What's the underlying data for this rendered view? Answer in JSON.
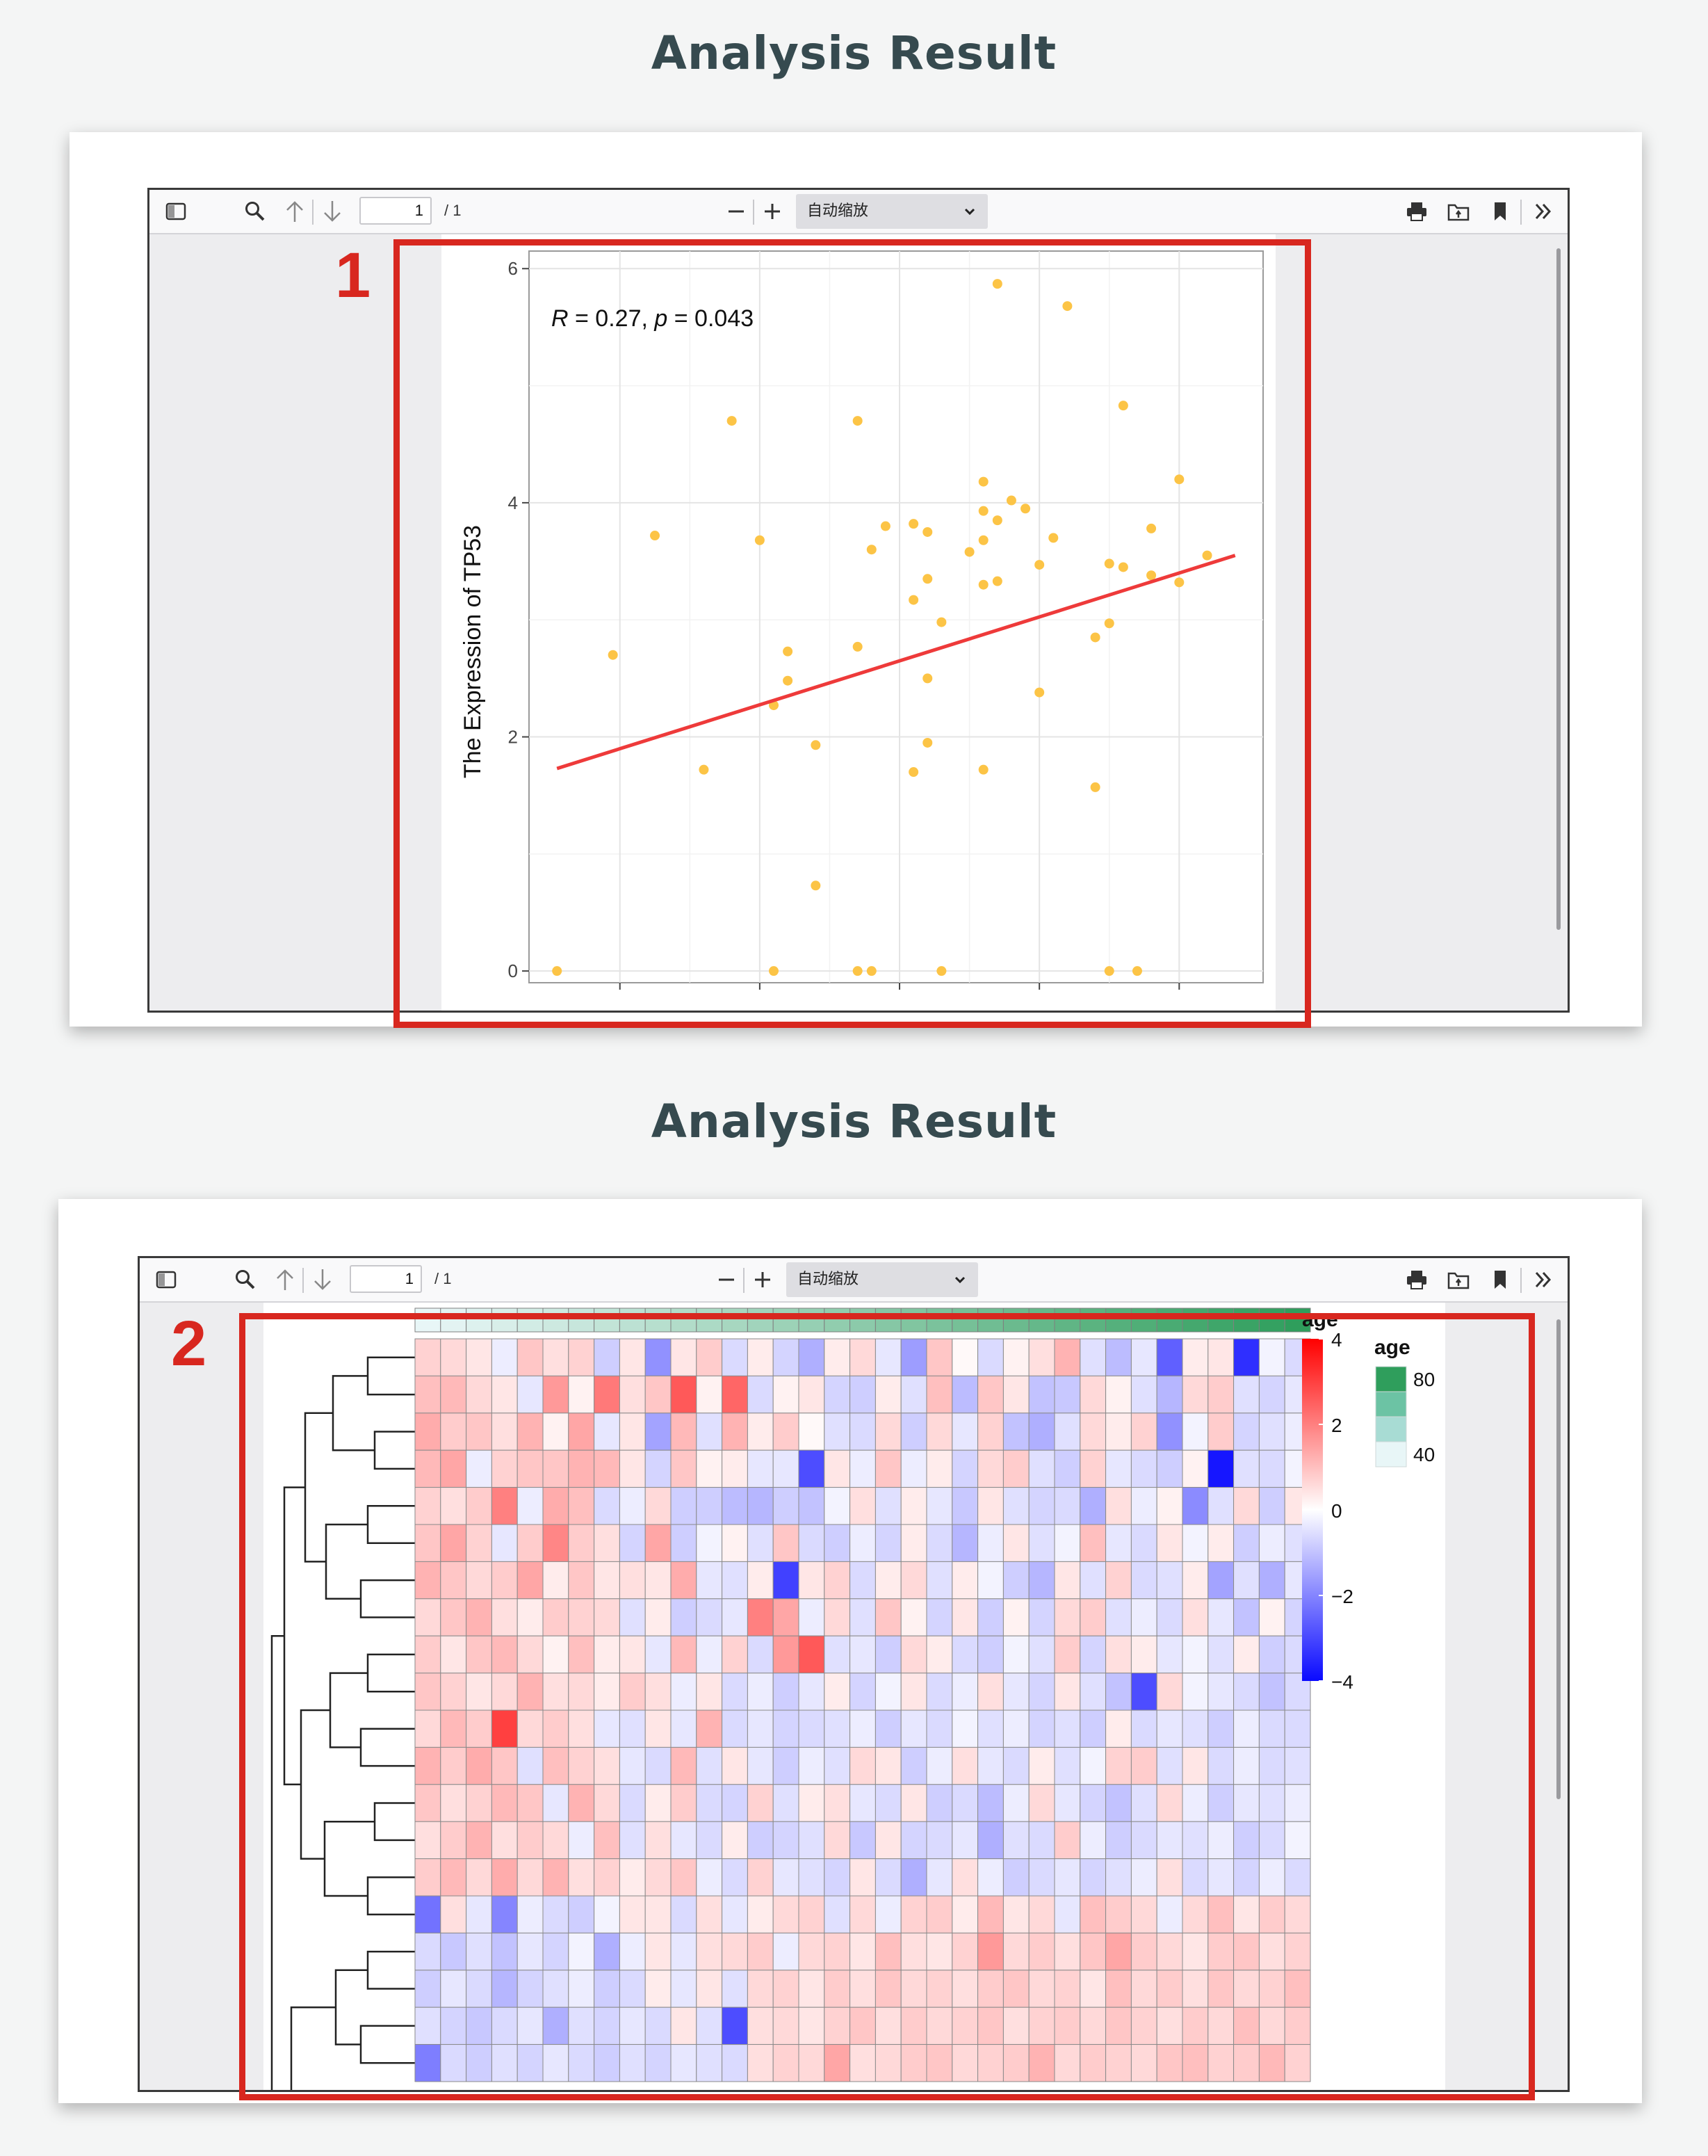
{
  "sections": [
    {
      "title": "Analysis Result",
      "marker": "1"
    },
    {
      "title": "Analysis Result",
      "marker": "2"
    }
  ],
  "toolbar": {
    "page_current": "1",
    "page_total": "/ 1",
    "zoom_value": "自动缩放",
    "icons": [
      "sidebar-toggle-icon",
      "search-icon",
      "arrow-up-icon",
      "arrow-down-icon",
      "zoom-out-icon",
      "zoom-in-icon",
      "chevron-down-icon",
      "print-icon",
      "open-file-icon",
      "bookmark-icon",
      "double-chevron-icon"
    ]
  },
  "chart_data": [
    {
      "type": "scatter",
      "title": "",
      "annotation": {
        "r_label": "R",
        "r_value": " = 0.27, ",
        "p_label": "p",
        "p_value": " = 0.043"
      },
      "xlabel": "",
      "ylabel": "The Expression of TP53",
      "ylim": [
        -0.1,
        6.15
      ],
      "yticks": [
        "0",
        "2",
        "4",
        "6"
      ],
      "xlim": [
        0,
        10.5
      ],
      "x_tick_positions": [
        1.3,
        3.3,
        5.3,
        7.3,
        9.3
      ],
      "point_color": "#fcc446",
      "fit_color": "#ee3a3a",
      "fit_line": {
        "x": [
          0.4,
          10.1
        ],
        "y": [
          1.73,
          3.55
        ]
      },
      "points": [
        {
          "x": 0.4,
          "y": 0
        },
        {
          "x": 1.2,
          "y": 2.7
        },
        {
          "x": 1.8,
          "y": 3.72
        },
        {
          "x": 2.5,
          "y": 1.72
        },
        {
          "x": 2.9,
          "y": 4.7
        },
        {
          "x": 3.3,
          "y": 3.68
        },
        {
          "x": 3.5,
          "y": 2.27
        },
        {
          "x": 3.5,
          "y": 0
        },
        {
          "x": 3.7,
          "y": 2.48
        },
        {
          "x": 3.7,
          "y": 2.73
        },
        {
          "x": 4.1,
          "y": 1.93
        },
        {
          "x": 4.1,
          "y": 0.73
        },
        {
          "x": 4.7,
          "y": 0
        },
        {
          "x": 4.7,
          "y": 2.77
        },
        {
          "x": 4.7,
          "y": 4.7
        },
        {
          "x": 4.9,
          "y": 0
        },
        {
          "x": 4.9,
          "y": 3.6
        },
        {
          "x": 5.1,
          "y": 3.8
        },
        {
          "x": 5.5,
          "y": 1.7
        },
        {
          "x": 5.5,
          "y": 3.17
        },
        {
          "x": 5.5,
          "y": 3.82
        },
        {
          "x": 5.7,
          "y": 3.35
        },
        {
          "x": 5.7,
          "y": 2.5
        },
        {
          "x": 5.7,
          "y": 1.95
        },
        {
          "x": 5.7,
          "y": 3.75
        },
        {
          "x": 5.9,
          "y": 0
        },
        {
          "x": 5.9,
          "y": 2.98
        },
        {
          "x": 6.3,
          "y": 3.58
        },
        {
          "x": 6.5,
          "y": 1.72
        },
        {
          "x": 6.5,
          "y": 3.3
        },
        {
          "x": 6.5,
          "y": 3.68
        },
        {
          "x": 6.5,
          "y": 3.93
        },
        {
          "x": 6.5,
          "y": 4.18
        },
        {
          "x": 6.7,
          "y": 3.33
        },
        {
          "x": 6.7,
          "y": 3.85
        },
        {
          "x": 6.7,
          "y": 5.87
        },
        {
          "x": 6.9,
          "y": 4.02
        },
        {
          "x": 7.1,
          "y": 3.95
        },
        {
          "x": 7.3,
          "y": 2.38
        },
        {
          "x": 7.3,
          "y": 3.47
        },
        {
          "x": 7.5,
          "y": 3.7
        },
        {
          "x": 7.7,
          "y": 5.68
        },
        {
          "x": 8.1,
          "y": 1.57
        },
        {
          "x": 8.1,
          "y": 2.85
        },
        {
          "x": 8.3,
          "y": 0
        },
        {
          "x": 8.3,
          "y": 2.97
        },
        {
          "x": 8.3,
          "y": 3.48
        },
        {
          "x": 8.5,
          "y": 3.45
        },
        {
          "x": 8.5,
          "y": 4.83
        },
        {
          "x": 8.7,
          "y": 0
        },
        {
          "x": 8.9,
          "y": 3.78
        },
        {
          "x": 8.9,
          "y": 3.38
        },
        {
          "x": 9.3,
          "y": 4.2
        },
        {
          "x": 9.3,
          "y": 3.32
        },
        {
          "x": 9.7,
          "y": 3.55
        }
      ]
    },
    {
      "type": "heatmap",
      "rows": 20,
      "cols": 35,
      "annotation_track": {
        "name": "age",
        "low_color": "#e8f6f7",
        "high_color": "#2f9e5c"
      },
      "color_legend": {
        "title": "age",
        "ticks": [
          "4",
          "2",
          "0",
          "−2",
          "−4"
        ],
        "min": -4,
        "max": 4,
        "low": "#0a0aff",
        "mid": "#ffffff",
        "high": "#ff0000"
      },
      "age_legend": {
        "title": "age",
        "ticks": [
          "80",
          "40"
        ],
        "colors": [
          "#2f9e5c",
          "#6cc3a4",
          "#a8dcd4",
          "#e8f6f7"
        ]
      },
      "cells": [
        [
          0.7,
          0.6,
          0.4,
          -0.3,
          0.9,
          0.5,
          0.7,
          -0.8,
          0.4,
          -1.8,
          0.4,
          0.8,
          -0.6,
          0.3,
          -0.7,
          -1.3,
          0.3,
          0.6,
          -0.4,
          -1.6,
          0.9,
          0.1,
          -0.6,
          0.2,
          0.5,
          1.2,
          -0.5,
          -1.1,
          -0.4,
          -2.6,
          0.3,
          0.4,
          -3.4,
          -0.2,
          -0.6
        ],
        [
          1.0,
          1.1,
          0.6,
          0.4,
          -0.4,
          1.6,
          0.2,
          2.1,
          0.5,
          0.9,
          2.6,
          0.2,
          2.4,
          -0.6,
          0.2,
          0.4,
          -0.7,
          -0.8,
          0.3,
          -0.5,
          1.0,
          -1.1,
          0.9,
          0.4,
          -1.0,
          -0.9,
          0.6,
          0.2,
          -0.5,
          -1.2,
          0.6,
          0.8,
          -0.5,
          -0.7,
          -0.4
        ],
        [
          1.3,
          0.8,
          0.9,
          0.5,
          1.2,
          0.2,
          1.4,
          -0.4,
          0.4,
          -1.5,
          1.1,
          -0.5,
          1.2,
          0.3,
          0.8,
          0.1,
          -0.5,
          -0.6,
          0.6,
          -0.8,
          0.6,
          -0.4,
          0.7,
          -1.0,
          -1.3,
          -0.5,
          0.6,
          0.3,
          0.7,
          -1.8,
          -0.2,
          0.8,
          -0.7,
          -0.5,
          -0.3
        ],
        [
          1.1,
          1.4,
          -0.3,
          0.7,
          0.9,
          0.9,
          1.2,
          1.1,
          0.4,
          -0.7,
          0.9,
          0.2,
          0.3,
          -0.4,
          -0.4,
          -2.9,
          0.4,
          -0.3,
          0.9,
          -0.3,
          0.3,
          -0.7,
          0.6,
          0.8,
          -0.5,
          -0.8,
          0.7,
          -0.4,
          -0.6,
          -0.8,
          0.2,
          -3.8,
          -0.5,
          -0.6,
          -0.2
        ],
        [
          0.7,
          0.5,
          0.8,
          2.0,
          -0.3,
          1.3,
          1.0,
          -0.6,
          -0.3,
          0.6,
          -0.8,
          -0.8,
          -1.1,
          -1.2,
          -0.8,
          -1.0,
          -0.2,
          0.5,
          -0.5,
          0.3,
          -0.4,
          -0.9,
          0.4,
          -0.5,
          -0.7,
          -0.6,
          -1.3,
          0.5,
          -0.3,
          0.2,
          -1.9,
          -0.5,
          0.6,
          -0.8,
          0.4
        ],
        [
          0.9,
          1.4,
          0.7,
          -0.4,
          0.8,
          1.9,
          0.8,
          0.5,
          -0.7,
          1.4,
          -0.8,
          -0.2,
          0.2,
          -0.5,
          0.9,
          -0.6,
          -0.8,
          -0.3,
          -0.7,
          0.3,
          -0.6,
          -1.2,
          -0.3,
          0.4,
          -0.5,
          -0.2,
          1.0,
          -0.4,
          -0.6,
          0.4,
          -0.2,
          0.3,
          -0.8,
          -0.3,
          -0.5
        ],
        [
          1.2,
          0.9,
          0.6,
          0.8,
          1.4,
          0.3,
          0.9,
          0.4,
          0.5,
          0.4,
          1.3,
          -0.4,
          -0.5,
          0.3,
          -3.1,
          0.4,
          0.7,
          -0.6,
          0.3,
          0.6,
          -0.5,
          0.3,
          -0.2,
          -0.8,
          -1.2,
          0.4,
          -0.5,
          0.7,
          -0.6,
          -0.5,
          0.3,
          -1.5,
          -0.5,
          -1.3,
          -0.4
        ],
        [
          0.6,
          0.9,
          1.2,
          0.5,
          0.3,
          0.8,
          0.7,
          0.6,
          -0.5,
          0.3,
          -0.8,
          -0.6,
          -0.4,
          2.0,
          1.4,
          -0.3,
          0.6,
          -0.5,
          0.9,
          0.2,
          -0.7,
          0.4,
          -0.8,
          0.2,
          -0.7,
          0.6,
          0.8,
          -0.5,
          -0.3,
          -0.6,
          0.5,
          -0.4,
          -1.0,
          0.2,
          -0.7
        ],
        [
          0.8,
          0.4,
          0.9,
          1.1,
          0.6,
          0.2,
          1.0,
          0.3,
          0.4,
          -0.4,
          1.1,
          -0.3,
          0.7,
          -0.6,
          1.6,
          2.6,
          -0.5,
          -0.4,
          -0.8,
          0.6,
          0.3,
          -0.6,
          -0.8,
          -0.2,
          -0.5,
          0.8,
          -0.7,
          0.5,
          0.3,
          -0.4,
          -0.2,
          -0.5,
          0.3,
          -0.8,
          -0.6
        ],
        [
          0.9,
          0.7,
          0.4,
          0.6,
          1.2,
          0.5,
          0.6,
          0.3,
          0.8,
          0.5,
          -0.3,
          0.4,
          -0.6,
          -0.3,
          -0.8,
          -0.4,
          0.3,
          -0.7,
          -0.2,
          0.4,
          -0.6,
          -0.3,
          0.5,
          -0.4,
          -0.7,
          0.4,
          -0.5,
          -1.0,
          -2.9,
          0.6,
          -0.2,
          -0.4,
          -0.6,
          -1.0,
          -0.6
        ],
        [
          0.6,
          1.1,
          0.8,
          3.0,
          0.6,
          0.8,
          0.5,
          -0.4,
          -0.5,
          0.4,
          -0.4,
          1.2,
          -0.6,
          -0.4,
          -0.7,
          -0.6,
          -0.5,
          -0.3,
          -0.8,
          -0.4,
          -0.6,
          -0.2,
          -0.5,
          -0.3,
          -0.7,
          -0.5,
          -0.8,
          0.3,
          -0.6,
          -0.4,
          -0.5,
          -0.8,
          -0.3,
          -0.6,
          -0.6
        ],
        [
          1.2,
          0.8,
          1.3,
          0.9,
          -0.5,
          1.0,
          0.7,
          0.5,
          -0.4,
          -0.6,
          1.1,
          -0.5,
          0.4,
          -0.4,
          -0.8,
          -0.3,
          -0.5,
          0.6,
          0.4,
          -0.8,
          -0.3,
          0.5,
          -0.4,
          -0.6,
          0.3,
          -0.5,
          -0.2,
          0.7,
          0.8,
          -0.5,
          0.4,
          -0.6,
          -0.3,
          -0.6,
          -0.5
        ],
        [
          0.9,
          0.5,
          0.7,
          1.1,
          0.9,
          -0.4,
          1.2,
          0.6,
          -0.6,
          0.3,
          0.8,
          -0.6,
          -0.7,
          0.7,
          -0.5,
          0.3,
          0.5,
          -0.4,
          -0.6,
          0.4,
          -0.8,
          -0.6,
          -1.1,
          -0.3,
          0.6,
          -0.4,
          -0.7,
          -1.0,
          -0.5,
          0.6,
          -0.3,
          -0.8,
          -0.4,
          -0.5,
          -0.3
        ],
        [
          0.5,
          0.8,
          1.2,
          0.5,
          0.8,
          0.6,
          -0.3,
          1.0,
          -0.5,
          0.5,
          -0.4,
          -0.6,
          0.3,
          -0.8,
          -0.7,
          -0.5,
          0.6,
          -0.9,
          0.4,
          -0.7,
          -0.6,
          -0.4,
          -1.3,
          -0.5,
          -0.6,
          0.8,
          -0.3,
          -0.8,
          -0.6,
          -0.4,
          -0.5,
          -0.3,
          -0.8,
          -0.6,
          -0.2
        ],
        [
          0.8,
          1.1,
          0.6,
          1.3,
          0.6,
          1.2,
          0.5,
          0.7,
          0.3,
          0.6,
          0.9,
          -0.3,
          -0.6,
          0.7,
          -0.4,
          -0.5,
          -0.7,
          0.4,
          -0.6,
          -1.3,
          -0.4,
          0.5,
          -0.3,
          -0.8,
          -0.6,
          -0.4,
          -0.7,
          -0.5,
          -0.3,
          0.5,
          -0.6,
          -0.4,
          -0.7,
          -0.3,
          -0.6
        ],
        [
          -2.3,
          0.5,
          -0.4,
          -2.0,
          -0.3,
          -0.6,
          -0.8,
          -0.2,
          0.4,
          0.4,
          -0.6,
          0.5,
          -0.4,
          0.3,
          0.6,
          0.7,
          -0.5,
          0.6,
          -0.3,
          0.7,
          0.8,
          0.3,
          1.1,
          0.4,
          0.6,
          -0.4,
          1.0,
          0.8,
          0.6,
          -0.3,
          0.6,
          1.0,
          0.4,
          0.8,
          0.6
        ],
        [
          -0.6,
          -0.9,
          -0.5,
          -1.0,
          -0.4,
          -0.7,
          -0.2,
          -1.3,
          -0.3,
          0.4,
          -0.4,
          0.5,
          0.6,
          0.8,
          -0.3,
          0.6,
          0.7,
          0.4,
          1.0,
          0.5,
          0.4,
          0.7,
          1.6,
          0.6,
          0.8,
          0.5,
          0.9,
          1.4,
          0.8,
          0.6,
          0.4,
          0.8,
          0.9,
          0.5,
          0.7
        ],
        [
          -0.8,
          -0.4,
          -0.6,
          -1.2,
          -0.7,
          -0.5,
          -0.3,
          -0.8,
          -0.6,
          0.3,
          -0.4,
          0.4,
          -0.5,
          0.6,
          0.7,
          0.4,
          0.8,
          0.5,
          0.9,
          0.6,
          0.7,
          0.5,
          0.8,
          0.9,
          0.6,
          0.7,
          0.4,
          1.0,
          0.6,
          0.8,
          0.5,
          0.9,
          0.6,
          0.7,
          1.0
        ],
        [
          -0.5,
          -0.7,
          -0.9,
          -0.6,
          -0.4,
          -1.3,
          -0.5,
          -0.7,
          -0.4,
          -0.6,
          0.4,
          -0.5,
          -2.9,
          0.5,
          0.6,
          0.4,
          0.7,
          0.9,
          0.5,
          0.8,
          0.6,
          0.7,
          0.9,
          0.5,
          0.7,
          0.8,
          0.6,
          0.9,
          0.7,
          0.5,
          0.8,
          0.6,
          1.0,
          0.6,
          0.8
        ],
        [
          -2.1,
          -0.6,
          -0.8,
          -0.5,
          -0.7,
          -0.4,
          -0.6,
          -0.8,
          -0.5,
          -0.7,
          -0.4,
          -0.5,
          -0.6,
          0.5,
          0.7,
          0.6,
          1.4,
          0.5,
          0.6,
          0.8,
          0.9,
          0.6,
          0.7,
          0.8,
          1.2,
          0.6,
          0.8,
          0.7,
          0.6,
          0.9,
          1.0,
          0.7,
          0.8,
          1.1,
          0.7
        ]
      ]
    }
  ]
}
